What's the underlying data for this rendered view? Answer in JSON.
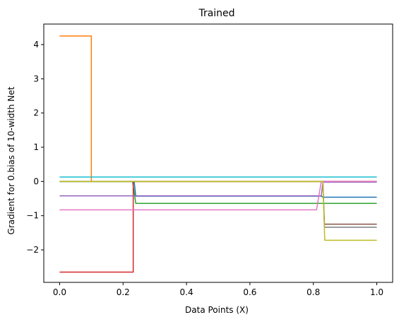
{
  "chart_data": {
    "type": "line",
    "title": "Trained",
    "xlabel": "Data Points (X)",
    "ylabel": "Gradient for 0.bias of 10-width Net",
    "xlim": [
      -0.05,
      1.05
    ],
    "ylim": [
      -2.95,
      4.6
    ],
    "xticks": [
      0.0,
      0.2,
      0.4,
      0.6,
      0.8,
      1.0
    ],
    "xtick_labels": [
      "0.0",
      "0.2",
      "0.4",
      "0.6",
      "0.8",
      "1.0"
    ],
    "yticks": [
      -2,
      -1,
      0,
      1,
      2,
      3,
      4
    ],
    "ytick_labels": [
      "−2",
      "−1",
      "0",
      "1",
      "2",
      "3",
      "4"
    ],
    "grid": false,
    "legend": "none",
    "series": [
      {
        "color": "#1f77b4",
        "x": [
          0.0,
          0.235,
          0.24,
          0.825,
          0.83,
          1.0
        ],
        "y": [
          0.0,
          0.0,
          -0.43,
          -0.43,
          -0.46,
          -0.46
        ]
      },
      {
        "color": "#ff7f0e",
        "x": [
          0.0,
          0.1,
          0.1,
          1.0
        ],
        "y": [
          4.25,
          4.25,
          0.0,
          0.0
        ]
      },
      {
        "color": "#2ca02c",
        "x": [
          0.0,
          0.23,
          0.24,
          1.0
        ],
        "y": [
          0.0,
          0.0,
          -0.64,
          -0.64
        ]
      },
      {
        "color": "#d62728",
        "x": [
          0.0,
          0.232,
          0.232,
          1.0
        ],
        "y": [
          -2.65,
          -2.65,
          0.0,
          0.0
        ]
      },
      {
        "color": "#9467bd",
        "x": [
          0.0,
          0.825,
          0.83,
          1.0
        ],
        "y": [
          -0.42,
          -0.42,
          -0.02,
          -0.02
        ]
      },
      {
        "color": "#8c564b",
        "x": [
          0.0,
          0.83,
          0.835,
          1.0
        ],
        "y": [
          0.0,
          0.0,
          -1.25,
          -1.25
        ]
      },
      {
        "color": "#e377c2",
        "x": [
          0.0,
          0.81,
          0.825,
          1.0
        ],
        "y": [
          -0.83,
          -0.83,
          0.0,
          0.0
        ]
      },
      {
        "color": "#7f7f7f",
        "x": [
          0.0,
          0.83,
          0.835,
          1.0
        ],
        "y": [
          0.0,
          0.0,
          -1.34,
          -1.34
        ]
      },
      {
        "color": "#bcbd22",
        "x": [
          0.0,
          0.83,
          0.836,
          1.0
        ],
        "y": [
          0.0,
          0.0,
          -1.72,
          -1.72
        ]
      },
      {
        "color": "#17becf",
        "x": [
          0.0,
          1.0
        ],
        "y": [
          0.13,
          0.13
        ]
      }
    ]
  }
}
